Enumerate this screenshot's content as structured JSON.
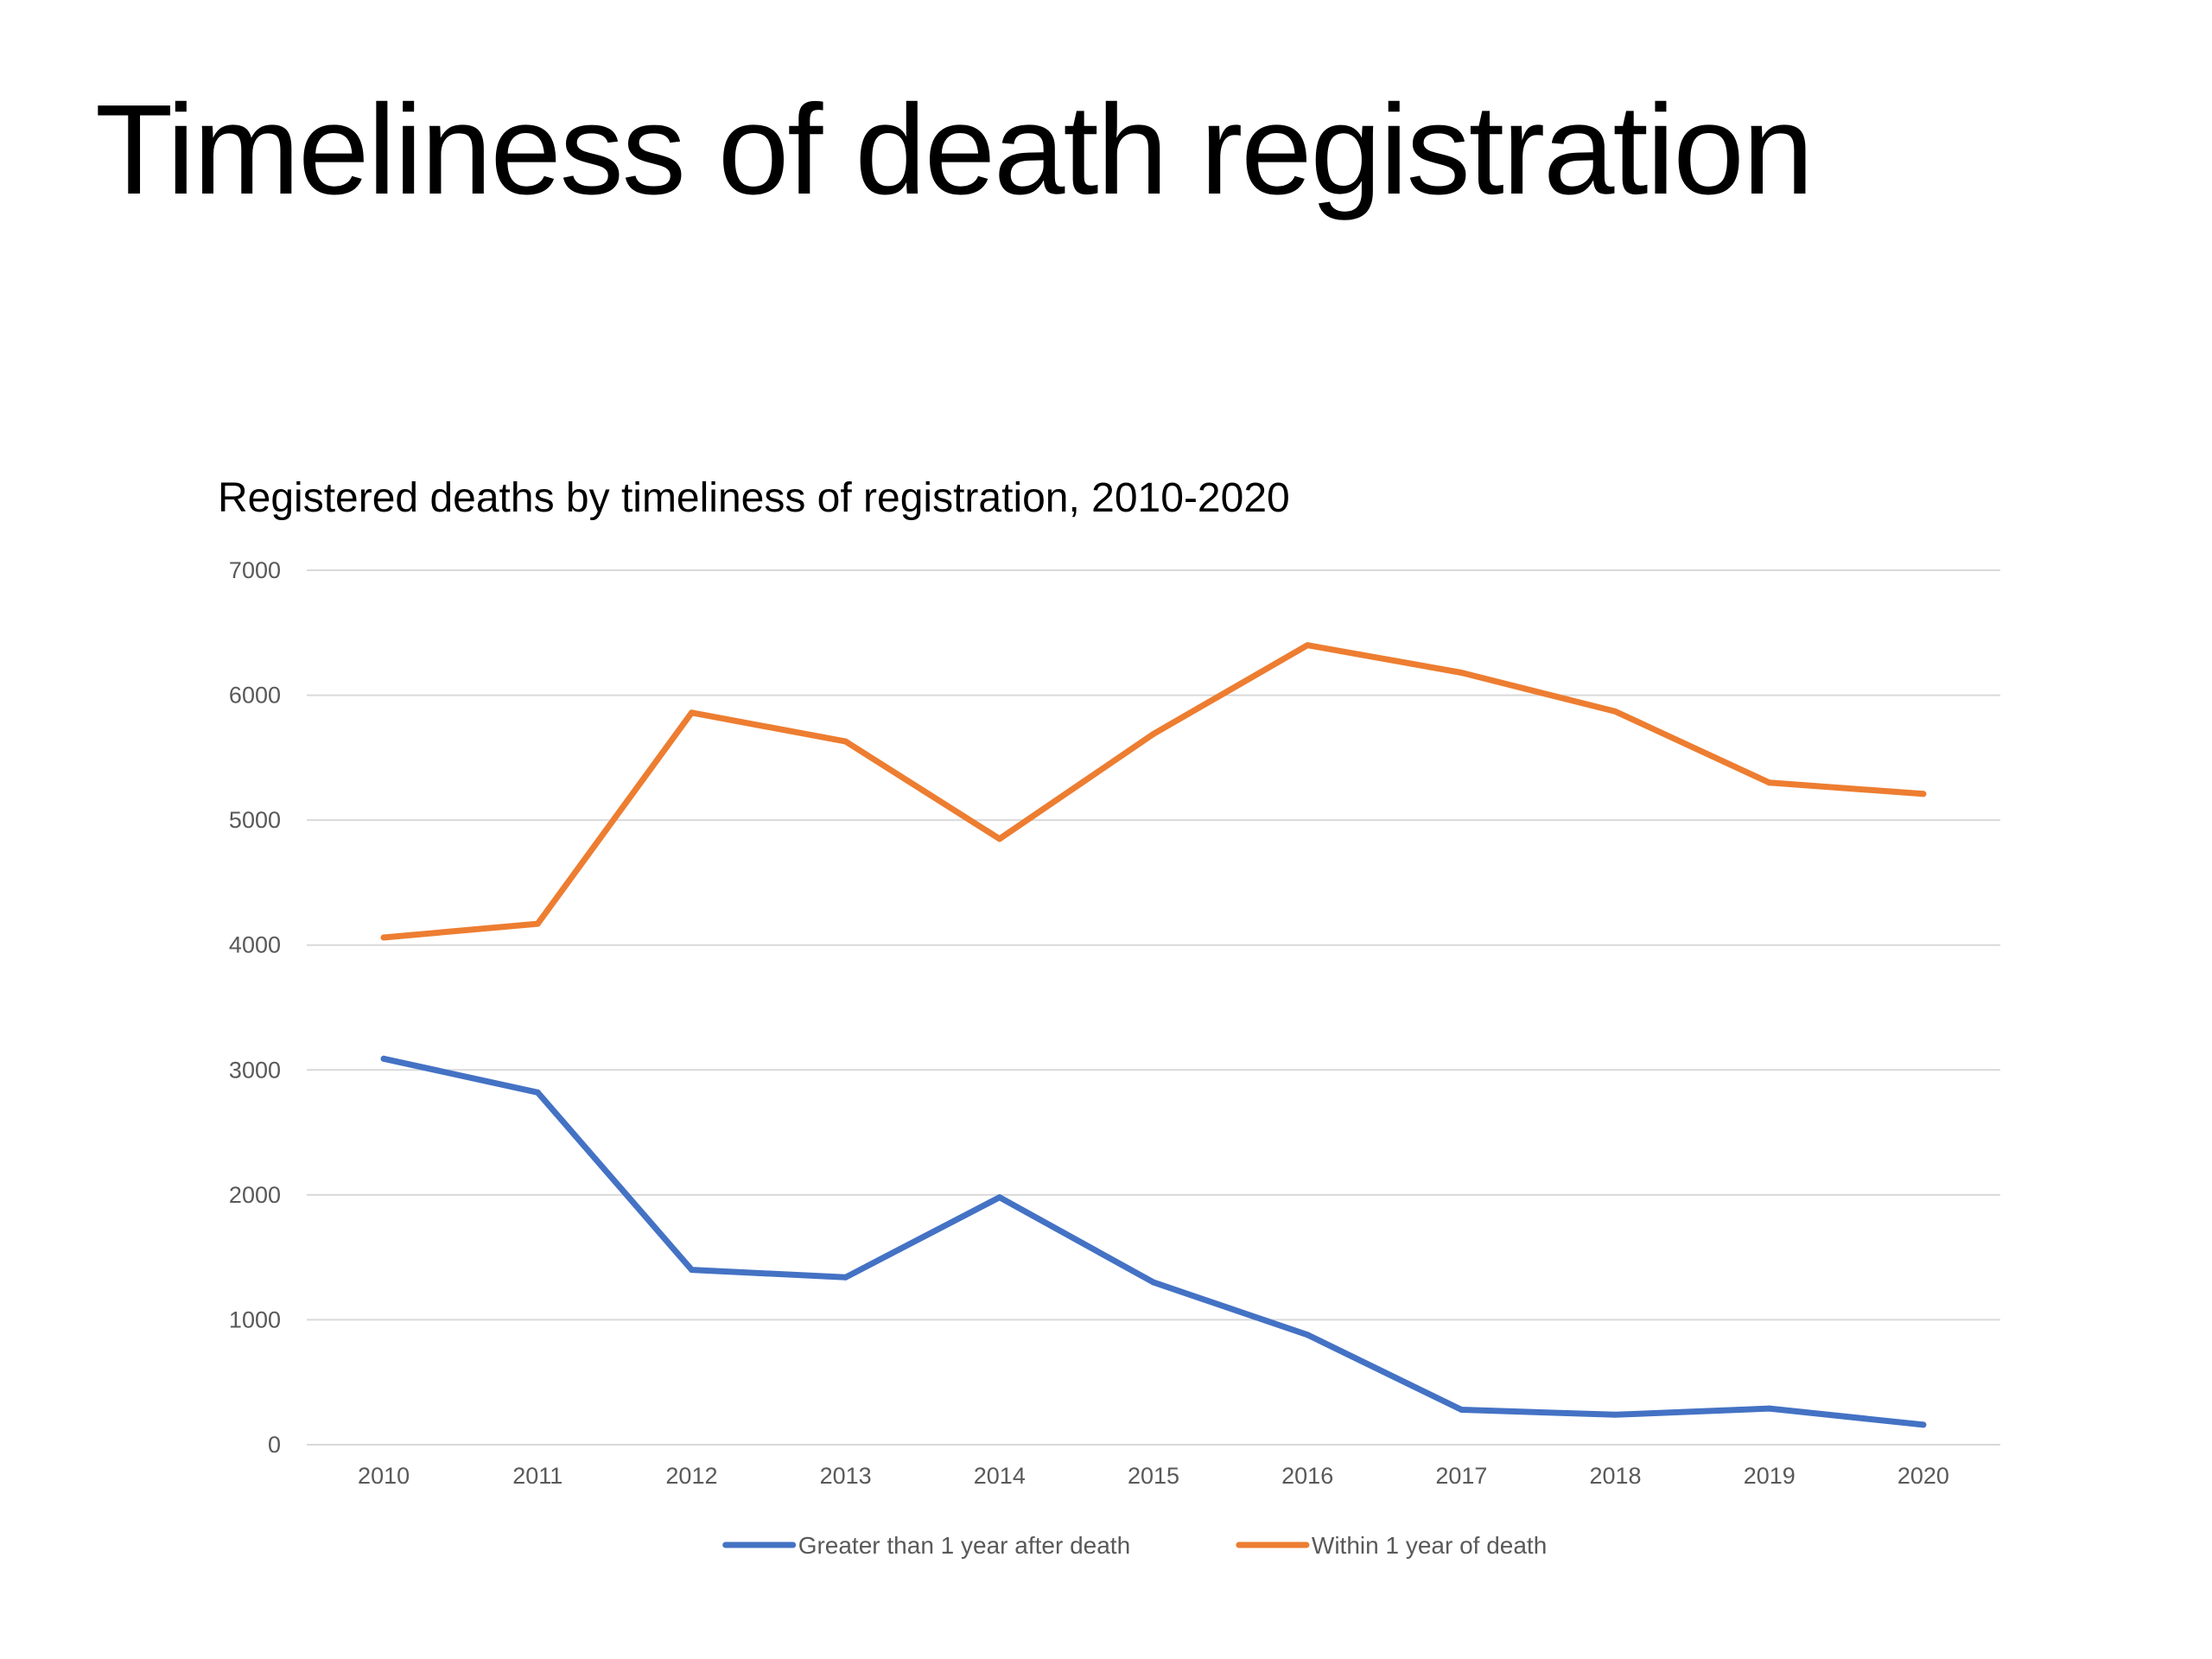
{
  "slide": {
    "title": "Timeliness of death registration"
  },
  "colors": {
    "series_1": "#4472c4",
    "series_2": "#ed7d31",
    "gridline": "#d9d9d9",
    "tick_text": "#595959"
  },
  "chart_data": {
    "type": "line",
    "title": "Registered deaths by timeliness of registration, 2010-2020",
    "xlabel": "",
    "ylabel": "",
    "categories": [
      "2010",
      "2011",
      "2012",
      "2013",
      "2014",
      "2015",
      "2016",
      "2017",
      "2018",
      "2019",
      "2020"
    ],
    "ylim": [
      0,
      7000
    ],
    "yticks": [
      "0",
      "1000",
      "2000",
      "3000",
      "4000",
      "5000",
      "6000",
      "7000"
    ],
    "grid": true,
    "legend": "bottom",
    "series": [
      {
        "name": "Greater than 1 year after death",
        "color": "#4472c4",
        "values": [
          3090,
          2820,
          1400,
          1340,
          1980,
          1300,
          880,
          280,
          240,
          290,
          160
        ]
      },
      {
        "name": "Within 1 year of death",
        "color": "#ed7d31",
        "values": [
          4060,
          4170,
          5860,
          5630,
          4850,
          5690,
          6400,
          6180,
          5870,
          5300,
          5210
        ]
      }
    ]
  }
}
